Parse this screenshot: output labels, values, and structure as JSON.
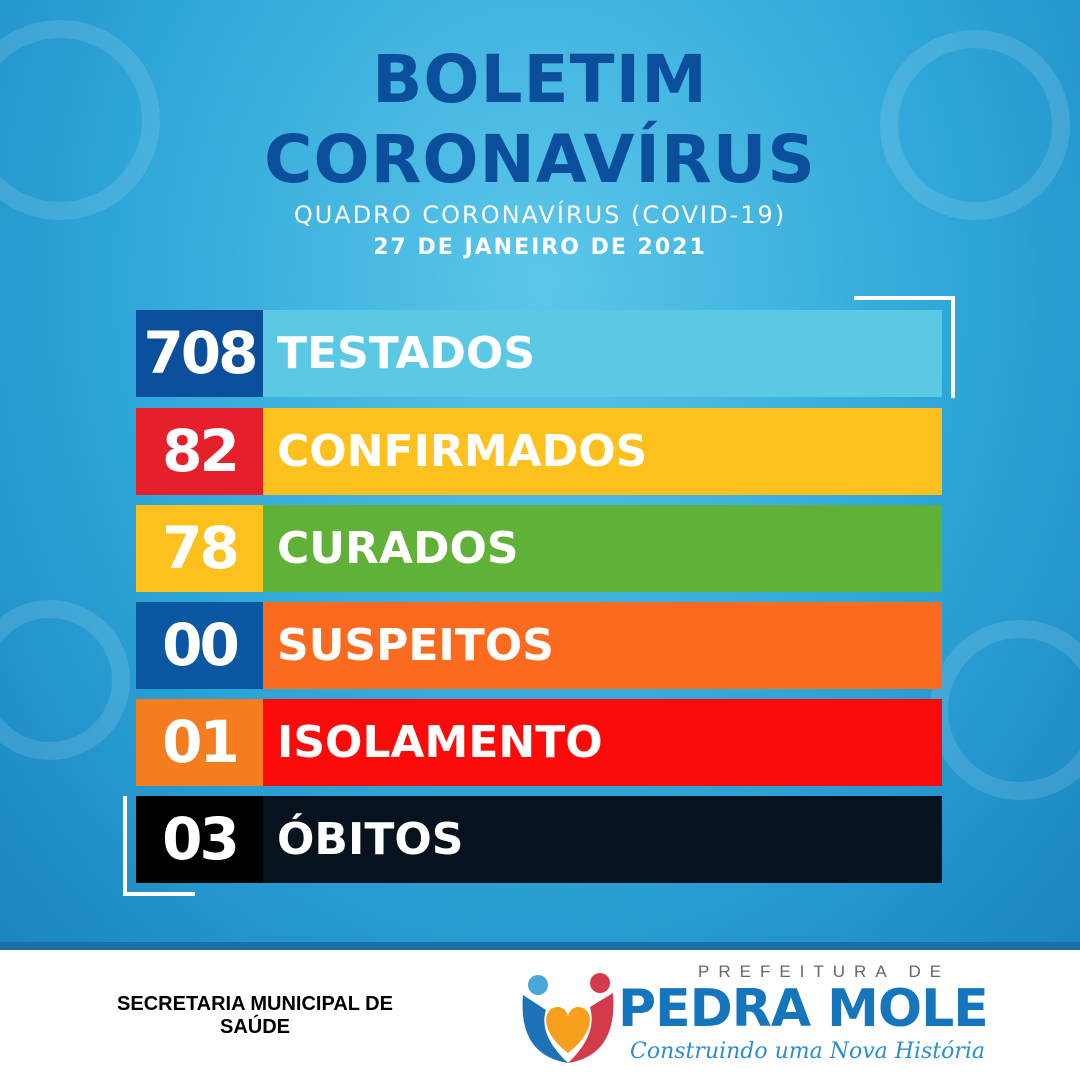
{
  "header": {
    "title_line1": "BOLETIM",
    "title_line2": "CORONAVÍRUS",
    "subtitle": "QUADRO CORONAVÍRUS (COVID-19)",
    "date": "27 DE JANEIRO DE 2021"
  },
  "rows": [
    {
      "value": "708",
      "label": "TESTADOS",
      "num_color": "#0b4f9c",
      "bar_color": "#5bc9e4"
    },
    {
      "value": "82",
      "label": "CONFIRMADOS",
      "num_color": "#e6202a",
      "bar_color": "#fcc11c"
    },
    {
      "value": "78",
      "label": "CURADOS",
      "num_color": "#fcc11c",
      "bar_color": "#5fb137"
    },
    {
      "value": "00",
      "label": "SUSPEITOS",
      "num_color": "#0b57a2",
      "bar_color": "#fa6a1f"
    },
    {
      "value": "01",
      "label": "ISOLAMENTO",
      "num_color": "#f47d20",
      "bar_color": "#fb0a0a"
    },
    {
      "value": "03",
      "label": "ÓBITOS",
      "num_color": "#000000",
      "bar_color": "#06131f"
    }
  ],
  "footer": {
    "secretaria_line1": "SECRETARIA MUNICIPAL DE",
    "secretaria_line2": "SAÚDE",
    "logo_prefix": "PREFEITURA DE",
    "logo_name": "PEDRA MOLE",
    "logo_slogan": "Construindo uma Nova História"
  }
}
